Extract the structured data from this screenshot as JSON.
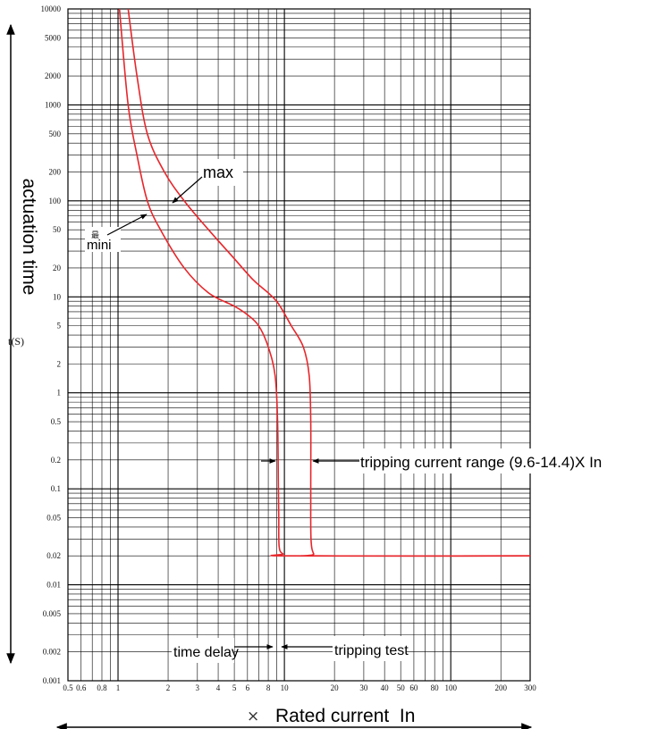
{
  "chart_data": {
    "type": "line",
    "xlabel": "Rated current  In",
    "xlabel_prefix": "×",
    "ylabel": "actuation time",
    "yunit": "t(S)",
    "x_scale": "log",
    "y_scale": "log",
    "xlim": [
      0.5,
      300
    ],
    "ylim": [
      0.001,
      10000
    ],
    "grid": true,
    "x_tick_labels": [
      {
        "v": 0.5,
        "t": "0.5"
      },
      {
        "v": 0.6,
        "t": "0.6"
      },
      {
        "v": 0.8,
        "t": "0.8"
      },
      {
        "v": 1,
        "t": "1"
      },
      {
        "v": 2,
        "t": "2"
      },
      {
        "v": 3,
        "t": "3"
      },
      {
        "v": 4,
        "t": "4"
      },
      {
        "v": 5,
        "t": "5"
      },
      {
        "v": 6,
        "t": "6"
      },
      {
        "v": 8,
        "t": "8"
      },
      {
        "v": 10,
        "t": "10"
      },
      {
        "v": 20,
        "t": "20"
      },
      {
        "v": 30,
        "t": "30"
      },
      {
        "v": 40,
        "t": "40"
      },
      {
        "v": 50,
        "t": "50"
      },
      {
        "v": 60,
        "t": "60"
      },
      {
        "v": 80,
        "t": "80"
      },
      {
        "v": 100,
        "t": "100"
      },
      {
        "v": 200,
        "t": "200"
      },
      {
        "v": 300,
        "t": "300"
      }
    ],
    "y_tick_labels": [
      {
        "v": 10000,
        "t": "10000"
      },
      {
        "v": 5000,
        "t": "5000"
      },
      {
        "v": 2000,
        "t": "2000"
      },
      {
        "v": 1000,
        "t": "1000"
      },
      {
        "v": 500,
        "t": "500"
      },
      {
        "v": 200,
        "t": "200"
      },
      {
        "v": 100,
        "t": "100"
      },
      {
        "v": 50,
        "t": "50"
      },
      {
        "v": 20,
        "t": "20"
      },
      {
        "v": 10,
        "t": "10"
      },
      {
        "v": 5,
        "t": "5"
      },
      {
        "v": 2,
        "t": "2"
      },
      {
        "v": 1,
        "t": "1"
      },
      {
        "v": 0.5,
        "t": "0.5"
      },
      {
        "v": 0.2,
        "t": "0.2"
      },
      {
        "v": 0.1,
        "t": "0.1"
      },
      {
        "v": 0.05,
        "t": "0.05"
      },
      {
        "v": 0.02,
        "t": "0.02"
      },
      {
        "v": 0.01,
        "t": "0.01"
      },
      {
        "v": 0.005,
        "t": "0.005"
      },
      {
        "v": 0.002,
        "t": "0.002"
      },
      {
        "v": 0.001,
        "t": "0.001"
      }
    ],
    "series": [
      {
        "label": "mini",
        "color": "#e8262b",
        "points": [
          [
            1.02,
            10000
          ],
          [
            1.15,
            1000
          ],
          [
            1.3,
            300
          ],
          [
            1.5,
            100
          ],
          [
            1.8,
            50
          ],
          [
            2.5,
            20
          ],
          [
            3.5,
            11
          ],
          [
            5,
            8
          ],
          [
            6,
            6.5
          ],
          [
            7,
            5
          ],
          [
            8,
            3
          ],
          [
            8.8,
            1.5
          ],
          [
            9.1,
            0.5
          ],
          [
            9.2,
            0.1
          ],
          [
            9.25,
            0.05
          ],
          [
            9.3,
            0.025
          ],
          [
            9.8,
            0.021
          ],
          [
            11,
            0.02
          ],
          [
            300,
            0.02
          ]
        ]
      },
      {
        "label": "max",
        "color": "#e8262b",
        "points": [
          [
            1.15,
            10000
          ],
          [
            1.3,
            2000
          ],
          [
            1.5,
            500
          ],
          [
            1.9,
            200
          ],
          [
            2.5,
            100
          ],
          [
            3.5,
            50
          ],
          [
            5,
            25
          ],
          [
            6.5,
            15
          ],
          [
            8,
            11
          ],
          [
            9.2,
            8.5
          ],
          [
            11,
            5
          ],
          [
            13,
            3
          ],
          [
            14.1,
            1.5
          ],
          [
            14.4,
            0.5
          ],
          [
            14.4,
            0.1
          ],
          [
            14.45,
            0.03
          ],
          [
            15,
            0.021
          ],
          [
            16,
            0.02
          ],
          [
            300,
            0.02
          ]
        ]
      }
    ],
    "annotations": {
      "max": "max",
      "mini_small": "最",
      "mini": "mini",
      "tripping_range": "tripping current range (9.6-14.4)X In",
      "time_delay": "time delay",
      "tripping_test": "tripping test"
    },
    "line_color": "#e8262b",
    "grid_color": "#000000"
  }
}
